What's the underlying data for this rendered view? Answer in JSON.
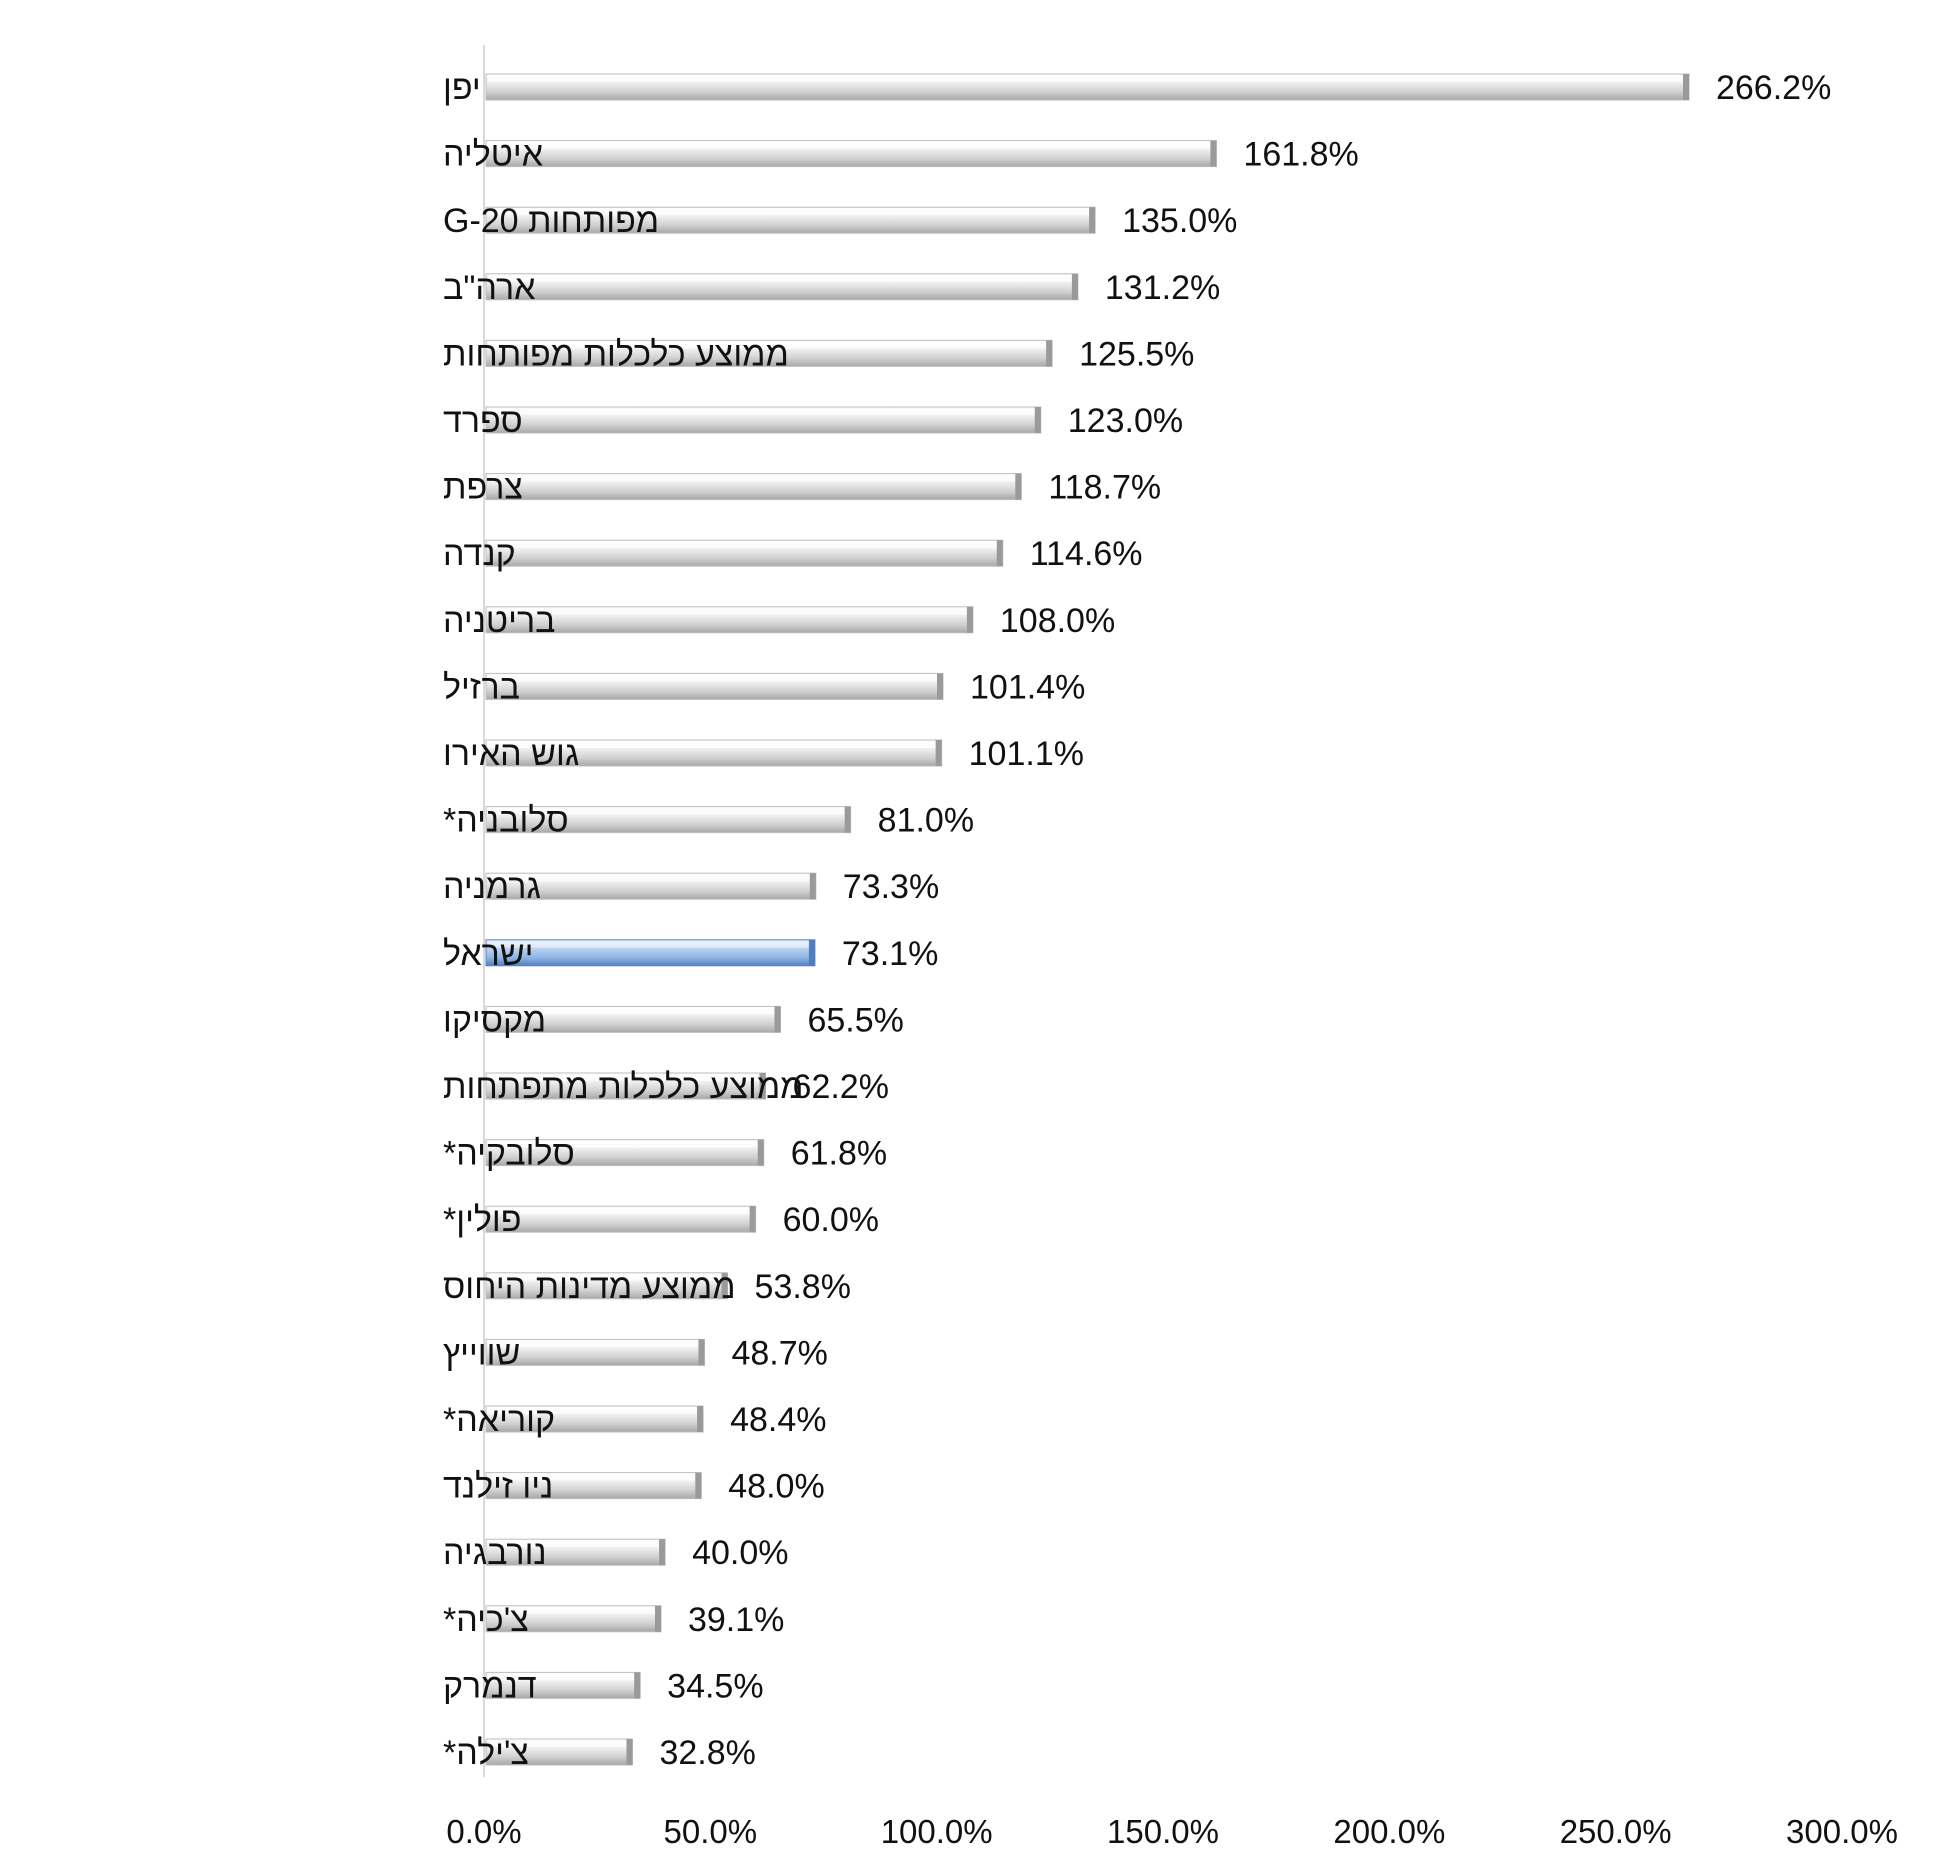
{
  "chart_data": {
    "type": "bar",
    "orientation": "horizontal",
    "title": "",
    "xlabel": "",
    "ylabel": "",
    "xlim": [
      0,
      300
    ],
    "ticks": [
      "0.0%",
      "50.0%",
      "100.0%",
      "150.0%",
      "200.0%",
      "250.0%",
      "300.0%"
    ],
    "tick_values": [
      0,
      50,
      100,
      150,
      200,
      250,
      300
    ],
    "grid": false,
    "legend": "none",
    "bar_color": "#d4d4d4",
    "highlight_color": "#8db3e2",
    "highlight_category": "ישראל",
    "categories": [
      "יפן",
      "איטליה",
      "מפותחות G-20",
      "ארה\"ב",
      "ממוצע כלכלות מפותחות",
      "ספרד",
      "צרפת",
      "קנדה",
      "בריטניה",
      "ברזיל",
      "גוש האירו",
      "סלובניה*",
      "גרמניה",
      "ישראל",
      "מקסיקו",
      "ממוצע כלכלות מתפתחות",
      "סלובקיה*",
      "פולין*",
      "ממוצע מדינות היחוס",
      "שווייץ",
      "קוריאה*",
      "ניו זילנד",
      "נורבגיה",
      "צ'כיה*",
      "דנמרק",
      "צ'ילה*"
    ],
    "values": [
      266.2,
      161.8,
      135.0,
      131.2,
      125.5,
      123.0,
      118.7,
      114.6,
      108.0,
      101.4,
      101.1,
      81.0,
      73.3,
      73.1,
      65.5,
      62.2,
      61.8,
      60.0,
      53.8,
      48.7,
      48.4,
      48.0,
      40.0,
      39.1,
      34.5,
      32.8
    ],
    "value_labels": [
      "266.2%",
      "161.8%",
      "135.0%",
      "131.2%",
      "125.5%",
      "123.0%",
      "118.7%",
      "114.6%",
      "108.0%",
      "101.4%",
      "101.1%",
      "81.0%",
      "73.3%",
      "73.1%",
      "65.5%",
      "62.2%",
      "61.8%",
      "60.0%",
      "53.8%",
      "48.7%",
      "48.4%",
      "48.0%",
      "40.0%",
      "39.1%",
      "34.5%",
      "32.8%"
    ]
  }
}
